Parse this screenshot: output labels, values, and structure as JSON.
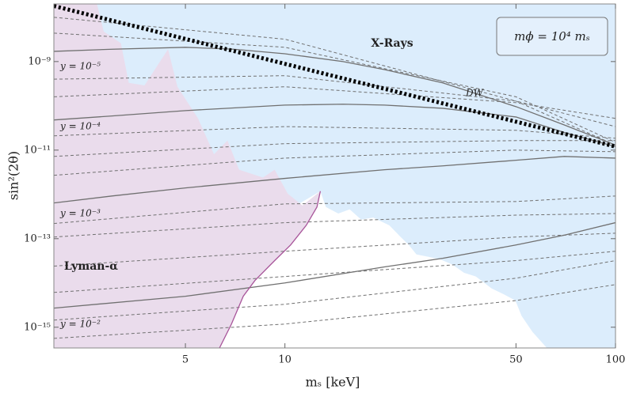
{
  "chart_data": {
    "type": "line",
    "xlabel": "mₛ [keV]",
    "ylabel": "sin²(2θ)",
    "xscale": "log",
    "yscale": "log",
    "xlim": [
      2,
      100
    ],
    "ylim": [
      3.4e-16,
      2e-08
    ],
    "xticks": [
      5,
      10,
      50,
      100
    ],
    "yticks": [
      {
        "value": 1e-15,
        "label": "10⁻¹⁵"
      },
      {
        "value": 1e-13,
        "label": "10⁻¹³"
      },
      {
        "value": 1e-11,
        "label": "10⁻¹¹"
      },
      {
        "value": 1e-09,
        "label": "10⁻⁹"
      }
    ],
    "grid": false,
    "annotation_box": "mϕ = 10⁴ mₛ",
    "regions": [
      {
        "name": "X-Rays",
        "color": "#dcedfc",
        "x": [
          2,
          100,
          100,
          62.0,
          56.1,
          52.0,
          49.8,
          45.8,
          42.2,
          37.8,
          34.8,
          32.1,
          29.5,
          27.2,
          25.0,
          23.7,
          22.4,
          20.7,
          18.5,
          17.0,
          15.7,
          14.5,
          13.3,
          12.8,
          2
        ],
        "y": [
          2e-08,
          2e-08,
          3.4e-16,
          3.4e-16,
          7.8e-16,
          1.8e-15,
          4e-15,
          5.6e-15,
          7.5e-15,
          1.4e-14,
          1.7e-14,
          2.6e-14,
          3.4e-14,
          3.9e-14,
          4.4e-14,
          7.2e-14,
          1.09e-13,
          2e-13,
          3e-13,
          2.7e-13,
          4.6e-13,
          3.7e-13,
          5.2e-13,
          1.18e-12,
          3.4e-16
        ]
      },
      {
        "name": "Lyman-α",
        "color": "#eadcec",
        "x": [
          2,
          2.7,
          2.83,
          3.19,
          3.37,
          3.76,
          4.43,
          4.73,
          5.46,
          6.1,
          6.7,
          7.27,
          8.58,
          9.31,
          10.2,
          11.3,
          12.8,
          12.5,
          11.6,
          10.4,
          9.31,
          8.11,
          7.48,
          6.89,
          6.34,
          2
        ],
        "y": [
          2e-08,
          2e-08,
          4.8e-09,
          2.6e-09,
          3.3e-10,
          2.9e-10,
          1.9e-09,
          2.7e-10,
          5.2e-11,
          8.1e-12,
          1.64e-11,
          3.6e-12,
          2.4e-12,
          3.6e-12,
          1.04e-12,
          5.6e-13,
          1.18e-12,
          5.2e-13,
          2e-13,
          7.2e-14,
          3.2e-14,
          1.13e-14,
          5e-15,
          1.18e-15,
          3.4e-16,
          3.4e-16
        ]
      }
    ],
    "series": [
      {
        "name": "y = 10⁻⁵",
        "color": "#707070",
        "style": "solid",
        "x": [
          2,
          3,
          5,
          7,
          10,
          15,
          20,
          30,
          50,
          70,
          100
        ],
        "values": [
          1.7e-09,
          1.9e-09,
          2.1e-09,
          1.9e-09,
          1.5e-09,
          1e-09,
          6.6e-10,
          3.3e-10,
          9.6e-11,
          3.7e-11,
          1.3e-11
        ]
      },
      {
        "name": "y = 10⁻⁴",
        "color": "#707070",
        "style": "solid",
        "x": [
          2,
          3,
          5,
          10,
          15,
          20,
          30,
          50,
          70,
          100
        ],
        "values": [
          4.8e-11,
          5.9e-11,
          7.8e-11,
          1.04e-10,
          1.09e-10,
          1.04e-10,
          8.8e-11,
          5.6e-11,
          2.5e-11,
          1.2e-11
        ]
      },
      {
        "name": "y = 10⁻³",
        "color": "#707070",
        "style": "solid",
        "x": [
          2,
          3,
          5,
          10,
          20,
          30,
          50,
          70,
          100
        ],
        "values": [
          6.4e-13,
          9.2e-13,
          1.4e-12,
          2.3e-12,
          3.6e-12,
          4.4e-12,
          5.9e-12,
          7.2e-12,
          6.6e-12
        ]
      },
      {
        "name": "y = 10⁻²",
        "color": "#707070",
        "style": "solid",
        "x": [
          2,
          5,
          10,
          20,
          30,
          50,
          70,
          100
        ],
        "values": [
          2.7e-15,
          5e-15,
          1e-14,
          2.3e-14,
          3.6e-14,
          7.2e-14,
          1.2e-13,
          2.3e-13
        ]
      },
      {
        "color": "#707070",
        "style": "dashed",
        "x": [
          2,
          10,
          50,
          100
        ],
        "values": [
          1e-08,
          3.2e-09,
          1.28e-10,
          1.3e-11
        ]
      },
      {
        "color": "#707070",
        "style": "dashed",
        "x": [
          2,
          10,
          50,
          100
        ],
        "values": [
          4.4e-09,
          2.1e-09,
          1.6e-10,
          1.5e-11
        ]
      },
      {
        "color": "#707070",
        "style": "dashed",
        "x": [
          2,
          10,
          50,
          100
        ],
        "values": [
          4e-10,
          4.8e-10,
          1.28e-10,
          3.4e-11
        ]
      },
      {
        "color": "#707070",
        "style": "dashed",
        "x": [
          2,
          10,
          50,
          100
        ],
        "values": [
          1.6e-10,
          2.7e-10,
          1.18e-10,
          5.2e-11
        ]
      },
      {
        "color": "#707070",
        "style": "dashed",
        "x": [
          2,
          10,
          50,
          100
        ],
        "values": [
          2.1e-11,
          3.4e-11,
          2.8e-11,
          1.85e-11
        ]
      },
      {
        "color": "#707070",
        "style": "dashed",
        "x": [
          2,
          10,
          50,
          100
        ],
        "values": [
          7.2e-12,
          1.4e-11,
          1.64e-11,
          1.64e-11
        ]
      },
      {
        "color": "#707070",
        "style": "dashed",
        "x": [
          2,
          10,
          50,
          100
        ],
        "values": [
          2.7e-12,
          6.6e-12,
          1e-11,
          9.2e-12
        ]
      },
      {
        "color": "#707070",
        "style": "dashed",
        "x": [
          2,
          10,
          50,
          100
        ],
        "values": [
          2.2e-13,
          6.1e-13,
          6.9e-13,
          9.2e-13
        ]
      },
      {
        "color": "#707070",
        "style": "dashed",
        "x": [
          2,
          10,
          50,
          100
        ],
        "values": [
          1.09e-13,
          2.3e-13,
          3.4e-13,
          3.7e-13
        ]
      },
      {
        "color": "#707070",
        "style": "dashed",
        "x": [
          2,
          10,
          50,
          100
        ],
        "values": [
          2.4e-14,
          5.2e-14,
          1.09e-13,
          1.33e-13
        ]
      },
      {
        "color": "#707070",
        "style": "dashed",
        "x": [
          2,
          10,
          50,
          100
        ],
        "values": [
          6.1e-15,
          1.4e-14,
          3.2e-14,
          5.2e-14
        ]
      },
      {
        "color": "#707070",
        "style": "dashed",
        "x": [
          2,
          10,
          50,
          100
        ],
        "values": [
          1.45e-15,
          3.3e-15,
          1.28e-14,
          3.2e-14
        ]
      },
      {
        "color": "#707070",
        "style": "dashed",
        "x": [
          2,
          10,
          50,
          100
        ],
        "values": [
          5.6e-16,
          1.18e-15,
          4e-15,
          9.2e-15
        ]
      },
      {
        "color": "#a8559a",
        "style": "solid",
        "x": [
          12.8,
          12.5,
          11.6,
          10.4,
          9.31,
          8.11,
          7.48,
          6.89,
          6.34
        ],
        "values": [
          1.18e-12,
          5.2e-13,
          2e-13,
          7.2e-14,
          3.2e-14,
          1.13e-14,
          5e-15,
          1.18e-15,
          3.4e-16
        ]
      },
      {
        "name": "DW",
        "color": "#000000",
        "style": "dotted",
        "x": [
          2,
          100
        ],
        "values": [
          1.8e-08,
          1.2e-11
        ]
      }
    ]
  }
}
